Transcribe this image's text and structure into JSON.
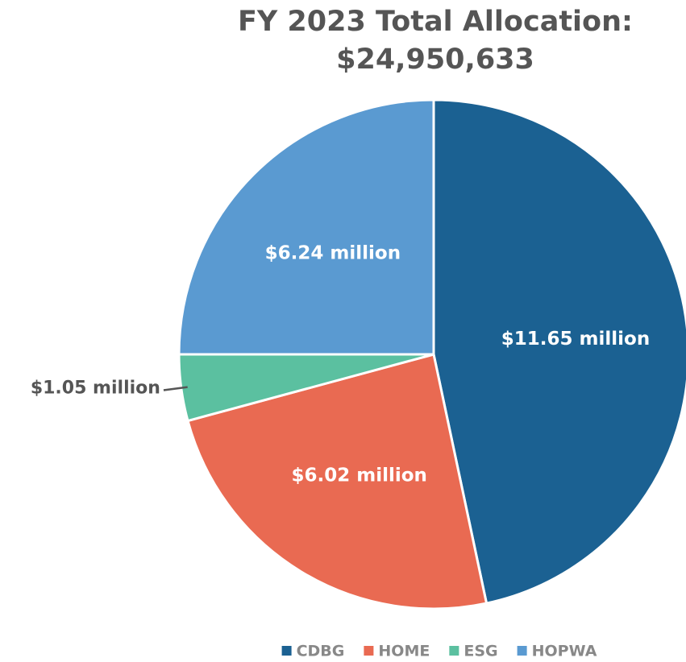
{
  "chart_data": {
    "type": "pie",
    "title": "FY 2023 Total Allocation: $24,950,633",
    "categories": [
      "CDBG",
      "HOME",
      "ESG",
      "HOPWA"
    ],
    "values": [
      11.65,
      6.02,
      1.05,
      6.24
    ],
    "value_labels": [
      "$11.65 million",
      "$6.02 million",
      "$1.05 million",
      "$6.24 million"
    ],
    "colors": [
      "#1b6192",
      "#e96a52",
      "#5bc0a0",
      "#5a9ad1"
    ],
    "legend": "bottom"
  }
}
